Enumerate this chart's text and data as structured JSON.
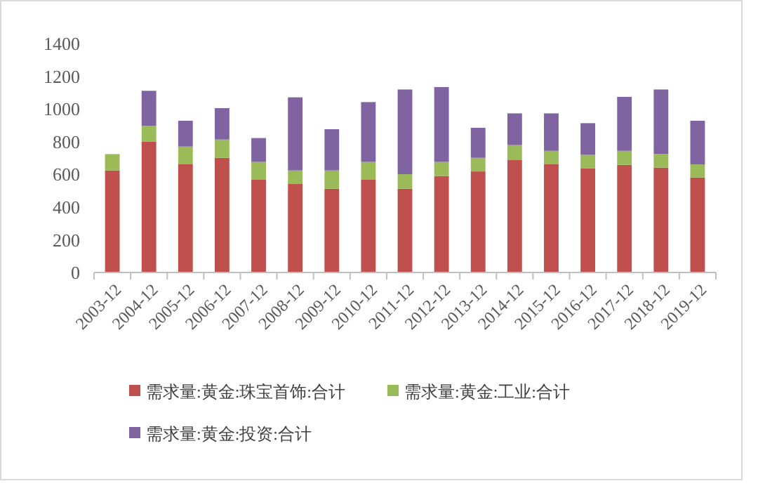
{
  "chart_data": {
    "type": "bar",
    "stacked": true,
    "categories": [
      "2003-12",
      "2004-12",
      "2005-12",
      "2006-12",
      "2007-12",
      "2008-12",
      "2009-12",
      "2010-12",
      "2011-12",
      "2012-12",
      "2013-12",
      "2014-12",
      "2015-12",
      "2016-12",
      "2017-12",
      "2018-12",
      "2019-12"
    ],
    "series": [
      {
        "name": "需求量:黄金:珠宝首饰:合计",
        "color": "#c0504d",
        "values": [
          624,
          799,
          664,
          701,
          567,
          541,
          512,
          567,
          512,
          590,
          618,
          687,
          664,
          636,
          658,
          641,
          581
        ]
      },
      {
        "name": "需求量:黄金:工业:合计",
        "color": "#9bbb59",
        "values": [
          100,
          97,
          106,
          112,
          109,
          83,
          112,
          109,
          89,
          86,
          83,
          92,
          80,
          83,
          86,
          83,
          80
        ]
      },
      {
        "name": "需求量:黄金:投资:合计",
        "color": "#8064a2",
        "values": [
          0,
          215,
          158,
          192,
          146,
          447,
          252,
          366,
          518,
          458,
          184,
          194,
          229,
          194,
          330,
          395,
          267
        ]
      }
    ],
    "ylim": [
      0,
      1400
    ],
    "yticks": [
      0,
      200,
      400,
      600,
      800,
      1000,
      1200,
      1400
    ],
    "grid": false,
    "legend": "bottom"
  }
}
